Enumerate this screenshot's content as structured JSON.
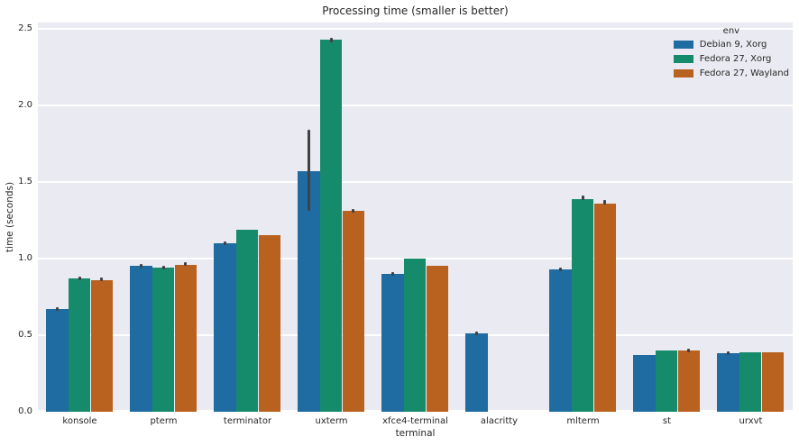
{
  "chart_data": {
    "type": "bar",
    "title": "Processing time (smaller is better)",
    "xlabel": "terminal",
    "ylabel": "time (seconds)",
    "legend_title": "env",
    "legend_position": "upper right",
    "grid": true,
    "plot_background": "#EAEAF2",
    "grid_color": "#FFFFFF",
    "text_color": "#262626",
    "error_bar_color": "#424242",
    "ylim": [
      0,
      2.54
    ],
    "yticks": [
      "0.0",
      "0.5",
      "1.0",
      "1.5",
      "2.0",
      "2.5"
    ],
    "ytick_values": [
      0,
      0.5,
      1.0,
      1.5,
      2.0,
      2.5
    ],
    "categories": [
      "konsole",
      "pterm",
      "terminator",
      "uxterm",
      "xfce4-terminal",
      "alacritty",
      "mlterm",
      "st",
      "urxvt"
    ],
    "series": [
      {
        "name": "Debian 9, Xorg",
        "color": "#1E6CA1",
        "values": [
          0.67,
          0.95,
          1.1,
          1.57,
          0.9,
          0.51,
          0.93,
          0.37,
          0.38
        ],
        "errors": [
          [
            0.66,
            0.68
          ],
          [
            0.94,
            0.96
          ],
          [
            1.09,
            1.11
          ],
          [
            1.31,
            1.84
          ],
          [
            0.89,
            0.91
          ],
          [
            0.5,
            0.52
          ],
          [
            0.92,
            0.94
          ],
          null,
          [
            0.37,
            0.39
          ]
        ]
      },
      {
        "name": "Fedora 27, Xorg",
        "color": "#168B6C",
        "values": [
          0.87,
          0.94,
          1.19,
          2.43,
          1.0,
          null,
          1.39,
          0.4,
          0.39
        ],
        "errors": [
          [
            0.86,
            0.88
          ],
          [
            0.93,
            0.95
          ],
          null,
          [
            2.41,
            2.44
          ],
          null,
          null,
          [
            1.38,
            1.41
          ],
          null,
          null
        ]
      },
      {
        "name": "Fedora 27, Wayland",
        "color": "#B9611E",
        "values": [
          0.86,
          0.96,
          1.15,
          1.31,
          0.95,
          null,
          1.36,
          0.4,
          0.39
        ],
        "errors": [
          [
            0.85,
            0.87
          ],
          [
            0.95,
            0.97
          ],
          null,
          [
            1.3,
            1.32
          ],
          null,
          null,
          [
            1.35,
            1.38
          ],
          [
            0.39,
            0.41
          ],
          null
        ]
      }
    ]
  }
}
